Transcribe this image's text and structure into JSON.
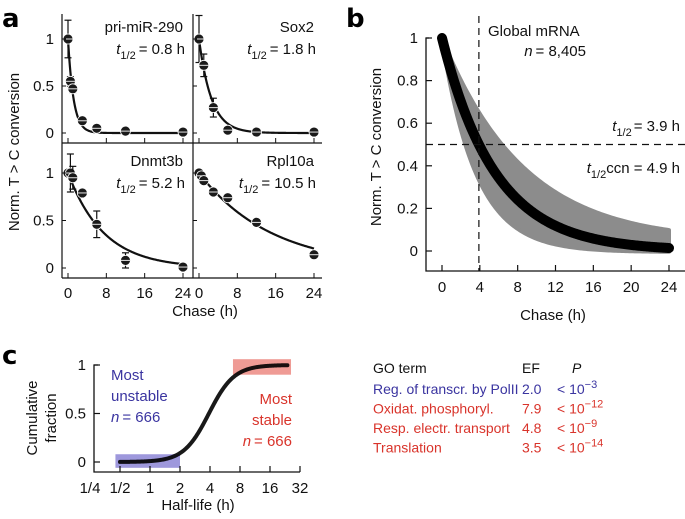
{
  "chart_data": [
    {
      "panel": "a",
      "type": "scatter",
      "description": "Small multiples: normalized T>C conversion vs chase time with exponential decay fits",
      "xlabel": "Chase (h)",
      "ylabel": "Norm. T > C conversion",
      "xlim": [
        -1,
        25
      ],
      "ylim": [
        -0.2,
        1.25
      ],
      "xticks": [
        0,
        8,
        16,
        24
      ],
      "yticks": [
        0,
        0.5,
        1
      ],
      "ytick_labels": [
        "0",
        "0.5",
        "1"
      ],
      "xtick_labels": [
        "0",
        "8",
        "16",
        "24"
      ],
      "series": [
        {
          "name": "pri-miR-290",
          "halflife_label": "= 0.8 h",
          "halflife": 0.8,
          "x": [
            0,
            0.5,
            1,
            3,
            6,
            12,
            24
          ],
          "y": [
            1.0,
            0.55,
            0.47,
            0.13,
            0.05,
            0.02,
            0.01
          ],
          "err": [
            0.2,
            0.05,
            0.04,
            0.03,
            0.02,
            0.02,
            0.02
          ]
        },
        {
          "name": "Sox2",
          "halflife_label": "= 1.8 h",
          "halflife": 1.8,
          "x": [
            0,
            1,
            3,
            6,
            12,
            24
          ],
          "y": [
            1.0,
            0.72,
            0.27,
            0.03,
            0.01,
            0.01
          ],
          "err": [
            0.25,
            0.12,
            0.1,
            0.03,
            0.02,
            0.02
          ]
        },
        {
          "name": "Dnmt3b",
          "halflife_label": "= 5.2 h",
          "halflife": 5.2,
          "x": [
            0,
            0.5,
            1,
            3,
            6,
            12,
            24
          ],
          "y": [
            1.0,
            1.0,
            0.95,
            0.79,
            0.46,
            0.08,
            0.01
          ],
          "err": [
            0.03,
            0.2,
            0.12,
            0.03,
            0.14,
            0.08,
            0.02
          ]
        },
        {
          "name": "Rpl10a",
          "halflife_label": "= 10.5 h",
          "halflife": 10.5,
          "x": [
            0,
            0.5,
            1,
            3,
            6,
            12,
            24
          ],
          "y": [
            1.0,
            0.97,
            0.92,
            0.8,
            0.74,
            0.48,
            0.14
          ],
          "err": [
            0.03,
            0.03,
            0.03,
            0.03,
            0.03,
            0.03,
            0.03
          ]
        }
      ]
    },
    {
      "panel": "b",
      "type": "line",
      "title": "Global mRNA",
      "n_label": "= 8,405",
      "xlabel": "Chase (h)",
      "ylabel": "Norm. T > C conversion",
      "xlim": [
        -1,
        26
      ],
      "ylim": [
        -0.1,
        1.05
      ],
      "xticks": [
        0,
        4,
        8,
        12,
        16,
        20,
        24
      ],
      "xtick_labels": [
        "0",
        "4",
        "8",
        "12",
        "16",
        "20",
        "24"
      ],
      "yticks": [
        0,
        0.2,
        0.4,
        0.6,
        0.8,
        1
      ],
      "ytick_labels": [
        "0",
        "0.2",
        "0.4",
        "0.6",
        "0.8",
        "1"
      ],
      "series": [
        {
          "name": "median decay",
          "halflife": 3.9
        },
        {
          "name": "band lower",
          "halflife": 2.5
        },
        {
          "name": "band upper",
          "halflife": 6.2
        }
      ],
      "reference_lines": {
        "x": 3.9,
        "y": 0.5
      },
      "annotations": [
        {
          "subscript": "1/2",
          "text": "=  3.9 h"
        },
        {
          "subscript": "1/2",
          "text": "ccn = 4.9 h"
        }
      ]
    },
    {
      "panel": "c",
      "type": "line",
      "description": "Cumulative distribution of half-lives (log2 x axis)",
      "xlabel": "Half-life (h)",
      "ylabel_line1": "Cumulative",
      "ylabel_line2": "fraction",
      "xlim_log2": [
        -2,
        5
      ],
      "xticks_log2": [
        -2,
        -1,
        0,
        1,
        2,
        3,
        4,
        5
      ],
      "xtick_labels": [
        "1/4",
        "1/2",
        "1",
        "2",
        "4",
        "8",
        "16",
        "32"
      ],
      "yticks": [
        0,
        0.5,
        1
      ],
      "ytick_labels": [
        "0",
        "0.5",
        "1"
      ],
      "cdf": {
        "median_halflife": 3.9,
        "log2_scale": 0.42,
        "x_start_h": 0.5,
        "x_end_h": 24
      },
      "highlights": [
        {
          "label_line1": "Most",
          "label_line2": "unstable",
          "n_label": "= 666",
          "from_h": 0.45,
          "to_h": 2.0,
          "color": "#7b6fc8"
        },
        {
          "label_line1": "Most",
          "label_line2": "stable",
          "n_label": "= 666",
          "from_h": 6.8,
          "to_h": 26,
          "color": "#e8837a"
        }
      ]
    },
    {
      "panel": "c-table",
      "type": "table",
      "columns": [
        "GO term",
        "EF",
        "P"
      ],
      "rows": [
        {
          "term": "Reg. of transcr. by PolII",
          "ef": "2.0",
          "p_prefix": "< 10",
          "p_exp": "−3",
          "color": "#3a34a0"
        },
        {
          "term": "Oxidat. phosphoryl.",
          "ef": "7.9",
          "p_prefix": "< 10",
          "p_exp": "−12",
          "color": "#d9342b"
        },
        {
          "term": "Resp. electr. transport",
          "ef": "4.8",
          "p_prefix": "< 10",
          "p_exp": "−9",
          "color": "#d9342b"
        },
        {
          "term": "Translation",
          "ef": "3.5",
          "p_prefix": "< 10",
          "p_exp": "−14",
          "color": "#d9342b"
        }
      ]
    }
  ],
  "labels": {
    "panel_a": "a",
    "panel_b": "b",
    "panel_c": "c",
    "t": "t",
    "n": "n"
  },
  "colors": {
    "ink": "#111111",
    "band": "#8c8c8c",
    "unstable": "#3a34a0",
    "stable": "#d9342b",
    "unstable_fill": "#8d86d6",
    "stable_fill": "#ec8a82"
  }
}
